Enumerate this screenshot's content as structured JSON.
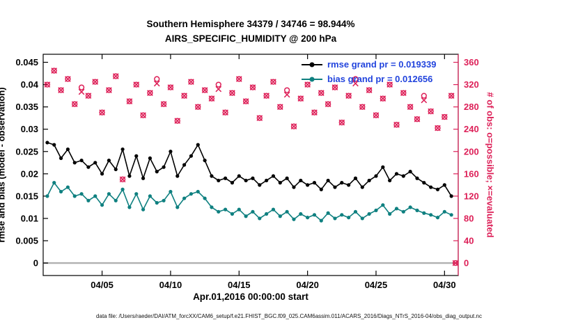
{
  "title": {
    "line1": "Southern Hemisphere 34379 / 34746 = 98.944%",
    "line2": "AIRS_SPECIFIC_HUMIDITY @ 200 hPa"
  },
  "axes": {
    "xlabel": "Apr.01,2016 00:00:00 start",
    "ylabel_left": "rmse and bias (model - observation)",
    "ylabel_right": "# of obs: o=possible; ×=evaluated"
  },
  "legend": [
    {
      "label": "rmse grand pr = 0.019339",
      "color": "#000000"
    },
    {
      "label": "bias grand pr = 0.012656",
      "color": "#0f8080"
    }
  ],
  "footer": "data file: /Users/raeder/DAI/ATM_forcXX/CAM6_setup/f.e21.FHIST_BGC.f09_025.CAM6assim.011/ACARS_2016/Diags_NTrS_2016-04/obs_diag_output.nc",
  "colors": {
    "rmse": "#000000",
    "bias": "#0f8080",
    "obs": "#dd2058",
    "legend_text": "#2244dd",
    "zero_line": "#b0b0b0",
    "axis": "#000000"
  },
  "chart_data": {
    "type": "line",
    "title": "Southern Hemisphere 34379 / 34746 = 98.944% — AIRS_SPECIFIC_HUMIDITY @ 200 hPa",
    "xlabel": "Apr.01,2016 00:00:00 start",
    "ylabel_left": "rmse and bias (model - observation)",
    "ylabel_right": "# of obs: o=possible; ×=evaluated",
    "x_range": [
      0.7,
      31.0
    ],
    "left_range": [
      -0.0028,
      0.0468
    ],
    "count_to_left": 0.000125,
    "left_ticks": [
      0,
      0.005,
      0.01,
      0.015,
      0.02,
      0.025,
      0.03,
      0.035,
      0.04,
      0.045
    ],
    "left_tick_labels": [
      "0",
      "0.005",
      "0.01",
      "0.015",
      "0.02",
      "0.025",
      "0.03",
      "0.035",
      "0.04",
      "0.045"
    ],
    "right_ticks": [
      0,
      40,
      80,
      120,
      160,
      200,
      240,
      280,
      320,
      360
    ],
    "x_ticks": [
      {
        "day": 5,
        "label": "04/05"
      },
      {
        "day": 10,
        "label": "04/10"
      },
      {
        "day": 15,
        "label": "04/15"
      },
      {
        "day": 20,
        "label": "04/20"
      },
      {
        "day": 25,
        "label": "04/25"
      },
      {
        "day": 30,
        "label": "04/30"
      }
    ],
    "x_days": [
      1,
      1.5,
      2,
      2.5,
      3,
      3.5,
      4,
      4.5,
      5,
      5.5,
      6,
      6.5,
      7,
      7.5,
      8,
      8.5,
      9,
      9.5,
      10,
      10.5,
      11,
      11.5,
      12,
      12.5,
      13,
      13.5,
      14,
      14.5,
      15,
      15.5,
      16,
      16.5,
      17,
      17.5,
      18,
      18.5,
      19,
      19.5,
      20,
      20.5,
      21,
      21.5,
      22,
      22.5,
      23,
      23.5,
      24,
      24.5,
      25,
      25.5,
      26,
      26.5,
      27,
      27.5,
      28,
      28.5,
      29,
      29.5,
      30,
      30.5
    ],
    "series": [
      {
        "name": "rmse",
        "values": [
          0.027,
          0.0265,
          0.0235,
          0.0255,
          0.0225,
          0.023,
          0.0215,
          0.0225,
          0.02,
          0.023,
          0.021,
          0.0255,
          0.0195,
          0.024,
          0.019,
          0.0235,
          0.0205,
          0.0215,
          0.025,
          0.0195,
          0.022,
          0.024,
          0.0265,
          0.023,
          0.0195,
          0.0185,
          0.019,
          0.018,
          0.0195,
          0.0185,
          0.019,
          0.0175,
          0.0185,
          0.0195,
          0.018,
          0.019,
          0.017,
          0.0185,
          0.0175,
          0.018,
          0.0165,
          0.0185,
          0.017,
          0.018,
          0.0175,
          0.019,
          0.017,
          0.0185,
          0.0195,
          0.0215,
          0.0185,
          0.02,
          0.0195,
          0.0205,
          0.019,
          0.018,
          0.017,
          0.0165,
          0.0175,
          0.015
        ]
      },
      {
        "name": "bias",
        "values": [
          0.015,
          0.018,
          0.016,
          0.017,
          0.015,
          0.0155,
          0.014,
          0.015,
          0.013,
          0.0155,
          0.014,
          0.0165,
          0.0125,
          0.0155,
          0.012,
          0.015,
          0.0135,
          0.014,
          0.016,
          0.0125,
          0.0145,
          0.0155,
          0.016,
          0.0145,
          0.0125,
          0.0115,
          0.012,
          0.011,
          0.012,
          0.0105,
          0.0115,
          0.01,
          0.011,
          0.012,
          0.0105,
          0.0115,
          0.0098,
          0.011,
          0.0102,
          0.0108,
          0.0095,
          0.0112,
          0.01,
          0.0108,
          0.0102,
          0.0115,
          0.01,
          0.011,
          0.0118,
          0.013,
          0.011,
          0.0122,
          0.0115,
          0.0125,
          0.0118,
          0.0112,
          0.0108,
          0.0102,
          0.0115,
          0.0108
        ]
      }
    ],
    "obs": {
      "x": [
        1,
        1.5,
        2,
        2.5,
        3,
        3.5,
        4,
        4.5,
        5,
        5.5,
        6,
        6.5,
        7,
        7.5,
        8,
        8.5,
        9,
        9.5,
        10,
        10.5,
        11,
        11.5,
        12,
        12.5,
        13,
        13.5,
        14,
        14.5,
        15,
        15.5,
        16,
        16.5,
        17,
        17.5,
        18,
        18.5,
        19,
        19.5,
        20,
        20.5,
        21,
        21.5,
        22,
        22.5,
        23,
        23.5,
        24,
        24.5,
        25,
        25.5,
        26,
        26.5,
        27,
        27.5,
        28,
        28.5,
        29,
        29.5,
        30,
        30.5,
        30.8
      ],
      "possible": [
        320,
        345,
        310,
        330,
        285,
        315,
        300,
        325,
        270,
        310,
        335,
        150,
        290,
        320,
        265,
        305,
        330,
        285,
        315,
        255,
        300,
        325,
        280,
        310,
        295,
        320,
        270,
        305,
        330,
        290,
        315,
        260,
        300,
        325,
        280,
        310,
        245,
        295,
        320,
        270,
        305,
        285,
        315,
        252,
        300,
        330,
        280,
        310,
        265,
        295,
        320,
        248,
        305,
        280,
        258,
        300,
        272,
        242,
        262,
        300,
        0
      ],
      "evaluated": [
        320,
        345,
        310,
        330,
        285,
        307,
        300,
        325,
        270,
        310,
        335,
        150,
        290,
        320,
        265,
        305,
        322,
        285,
        315,
        255,
        300,
        325,
        280,
        310,
        295,
        312,
        270,
        305,
        330,
        290,
        315,
        260,
        300,
        325,
        280,
        302,
        245,
        295,
        320,
        270,
        305,
        285,
        315,
        252,
        300,
        322,
        280,
        310,
        265,
        295,
        320,
        248,
        305,
        280,
        258,
        292,
        272,
        242,
        262,
        300,
        0
      ]
    }
  }
}
